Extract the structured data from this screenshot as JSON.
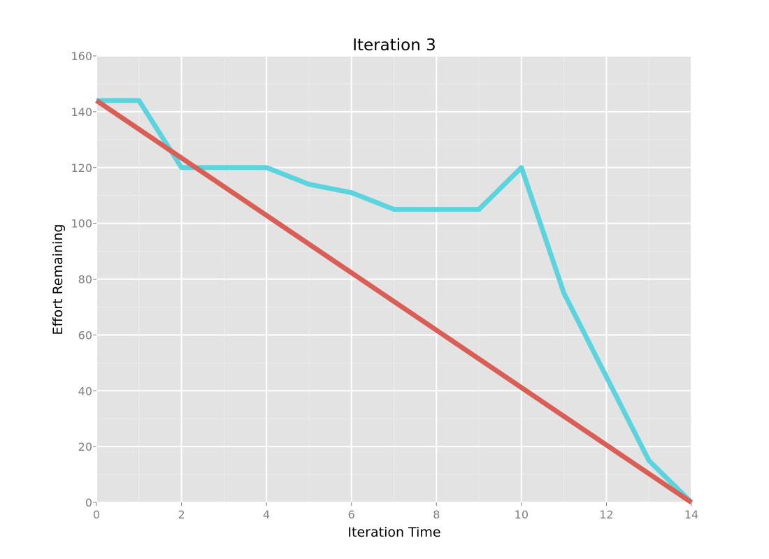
{
  "chart_data": {
    "type": "line",
    "title": "Iteration 3",
    "xlabel": "Iteration Time",
    "ylabel": "Effort Remaining",
    "xlim": [
      0,
      14
    ],
    "ylim": [
      0,
      160
    ],
    "x_ticks": [
      0,
      2,
      4,
      6,
      8,
      10,
      12,
      14
    ],
    "y_ticks": [
      0,
      20,
      40,
      60,
      80,
      100,
      120,
      140,
      160
    ],
    "grid": true,
    "legend": "none",
    "series": [
      {
        "color": "#5bd4de",
        "x": [
          0,
          1,
          2,
          3,
          4,
          5,
          6,
          7,
          8,
          9,
          10,
          11,
          12,
          13,
          14
        ],
        "values": [
          144,
          144,
          120,
          120,
          120,
          114,
          111,
          105,
          105,
          105,
          120,
          75,
          45,
          15,
          0
        ]
      },
      {
        "color": "#d95f56",
        "x": [
          0,
          14
        ],
        "values": [
          144,
          0
        ]
      }
    ]
  }
}
